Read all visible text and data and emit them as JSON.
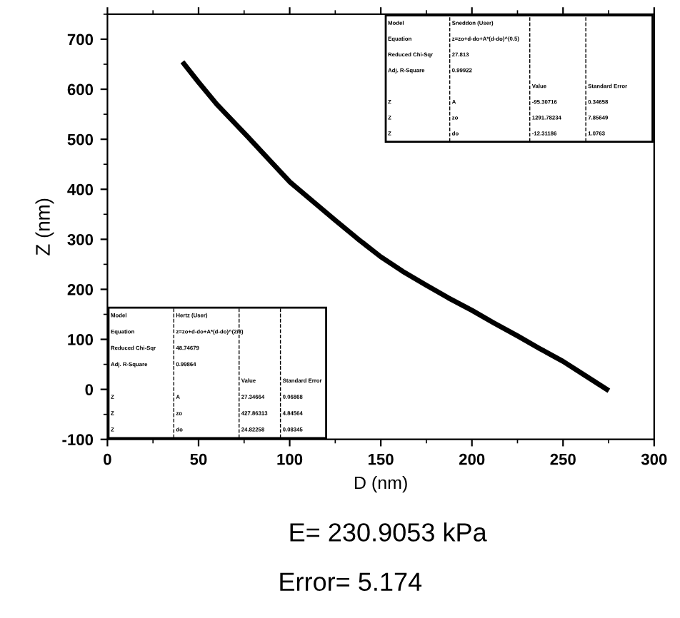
{
  "chart_data": {
    "type": "line",
    "xlabel": "D (nm)",
    "ylabel": "Z (nm)",
    "x": [
      42,
      50,
      60,
      77,
      88,
      100,
      112,
      125,
      137,
      150,
      162,
      175,
      187,
      200,
      212,
      225,
      237,
      250,
      262,
      274
    ],
    "series": [
      {
        "color": "#000000",
        "values": [
          651,
          614,
          570,
          505,
          462,
          415,
          378,
          338,
          302,
          265,
          236,
          208,
          183,
          158,
          133,
          107,
          82,
          56,
          28,
          0
        ]
      }
    ],
    "xlim": [
      0,
      300
    ],
    "ylim": [
      -100,
      750
    ],
    "xticks": [
      0,
      50,
      100,
      150,
      200,
      250,
      300
    ],
    "yticks": [
      -100,
      0,
      100,
      200,
      300,
      400,
      500,
      600,
      700
    ],
    "grid": false,
    "legend": false,
    "marker": "none",
    "line_style": "solid",
    "annotations": [
      "Model",
      "Sneddon (User)",
      "Equation",
      "z=zo+d-do+A*(d-do)^(0.5)",
      "Reduced Chi-Sqr",
      "27.813",
      "Adj. R-Square",
      "0.99922",
      "Value",
      "Standard Error",
      "Z",
      "A",
      "-95.30716",
      "0.34658",
      "Z",
      "zo",
      "1291.78234",
      "7.85649",
      "Z",
      "do",
      "-12.31186",
      "1.0763",
      "Model",
      "Hertz (User)",
      "Equation",
      "z=zo+d-do+A*(d-do)^(2/3)",
      "Reduced Chi-Sqr",
      "48.74679",
      "Adj. R-Square",
      "0.99864",
      "Value",
      "Standard Error",
      "Z",
      "A",
      "27.34664",
      "0.06868",
      "Z",
      "zo",
      "427.86313",
      "4.84564",
      "Z",
      "do",
      "24.82258",
      "0.08345",
      "E= 230.9053 kPa",
      "Error= 5.174"
    ]
  }
}
